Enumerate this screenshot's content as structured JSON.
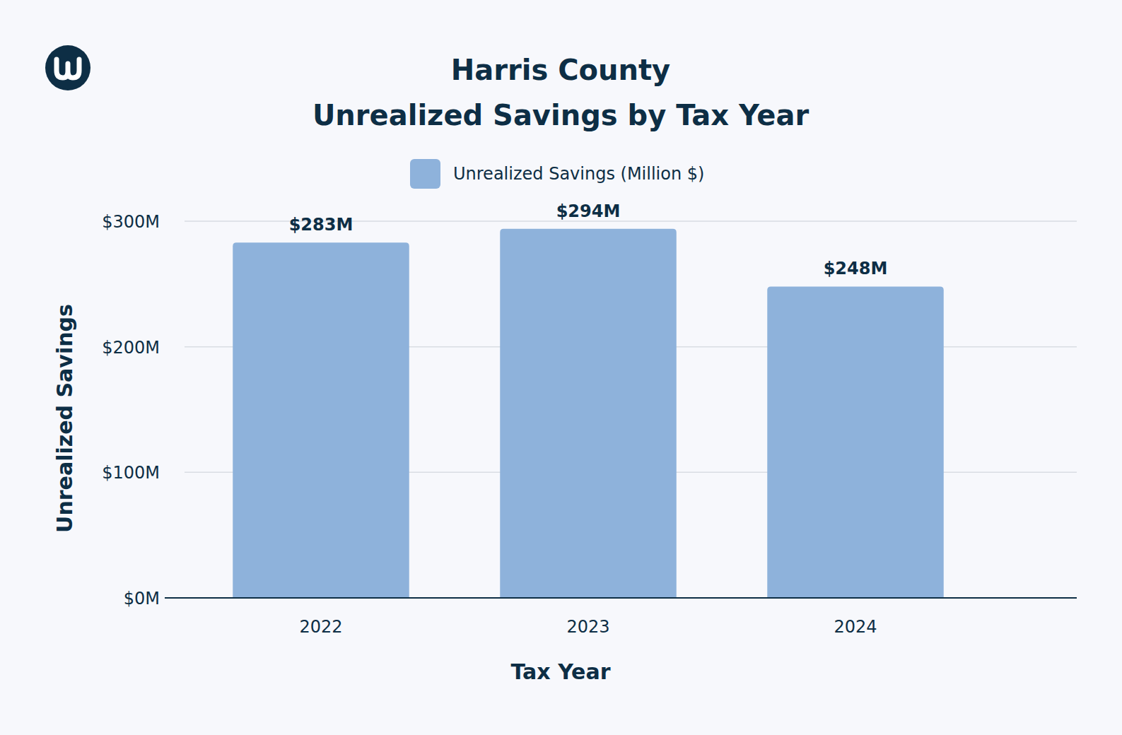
{
  "chart_data": {
    "type": "bar",
    "title": "Harris County",
    "subtitle": "Unrealized Savings by Tax Year",
    "x_label": "Tax Year",
    "y_label": "Unrealized Savings",
    "categories": [
      "2022",
      "2023",
      "2024"
    ],
    "series": [
      {
        "name": "Unrealized Savings (Million $)",
        "color": "#8eb2db",
        "values": [
          283,
          294,
          248
        ],
        "value_labels": [
          "$283M",
          "$294M",
          "$248M"
        ]
      }
    ],
    "ylim": [
      0,
      300
    ],
    "yticks": [
      {
        "value": 0,
        "label": "$0M"
      },
      {
        "value": 100,
        "label": "$100M"
      },
      {
        "value": 200,
        "label": "$200M"
      },
      {
        "value": 300,
        "label": "$300M"
      }
    ],
    "grid": true,
    "legend": "top",
    "data_labels": true
  }
}
